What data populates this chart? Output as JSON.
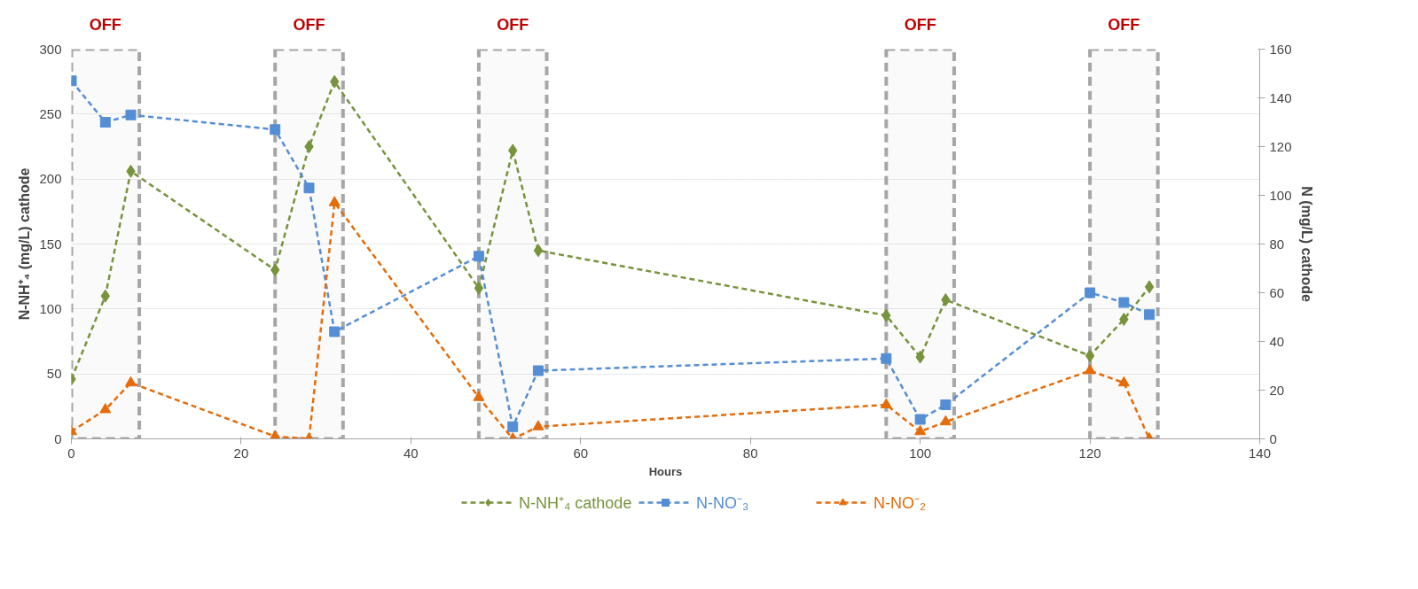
{
  "chart_data": {
    "type": "line",
    "xlabel": "Hours",
    "ylabel": "N-NH⁺₄ (mg/L) cathode",
    "y2label": "N (mg/L) cathode",
    "x": [
      0,
      4,
      7,
      24,
      28,
      31,
      48,
      52,
      55,
      96,
      100,
      103,
      120,
      124,
      127
    ],
    "series": [
      {
        "name": "N-NH⁺₄ cathode",
        "color": "#77933c",
        "marker": "diamond",
        "values": [
          46,
          110,
          206,
          130,
          225,
          275,
          116,
          222,
          145,
          95,
          63,
          107,
          64,
          92,
          117
        ]
      },
      {
        "name": "N-NO⁻₃",
        "color": "#558ed5",
        "marker": "square",
        "axis": "y2",
        "values": [
          147,
          130,
          133,
          127,
          103,
          44,
          75,
          5,
          28,
          33,
          8,
          14,
          60,
          56,
          51
        ]
      },
      {
        "name": "N-NO⁻₂",
        "color": "#e46c0a",
        "marker": "triangle",
        "axis": "y2",
        "values": [
          3,
          12,
          23,
          1,
          0,
          97,
          17,
          0,
          5,
          14,
          3,
          7,
          28,
          23,
          0
        ]
      }
    ],
    "xlim": [
      0,
      140
    ],
    "xticks": [
      0,
      20,
      40,
      60,
      80,
      100,
      120,
      140
    ],
    "ylim": [
      0,
      300
    ],
    "yticks": [
      0,
      50,
      100,
      150,
      200,
      250,
      300
    ],
    "y2lim": [
      0,
      160
    ],
    "y2ticks": [
      0,
      20,
      40,
      60,
      80,
      100,
      120,
      140,
      160
    ],
    "bands": [
      {
        "axis": "x",
        "from": 0,
        "to": 8,
        "label": "OFF",
        "color": "#a6a6a6"
      },
      {
        "axis": "x",
        "from": 24,
        "to": 32,
        "label": "OFF",
        "color": "#a6a6a6"
      },
      {
        "axis": "x",
        "from": 48,
        "to": 56,
        "label": "OFF",
        "color": "#a6a6a6"
      },
      {
        "axis": "x",
        "from": 96,
        "to": 104,
        "label": "OFF",
        "color": "#a6a6a6"
      },
      {
        "axis": "x",
        "from": 120,
        "to": 128,
        "label": "OFF",
        "color": "#a6a6a6"
      }
    ],
    "grid": "y",
    "legend": "bottom",
    "line_style": "dashed"
  }
}
